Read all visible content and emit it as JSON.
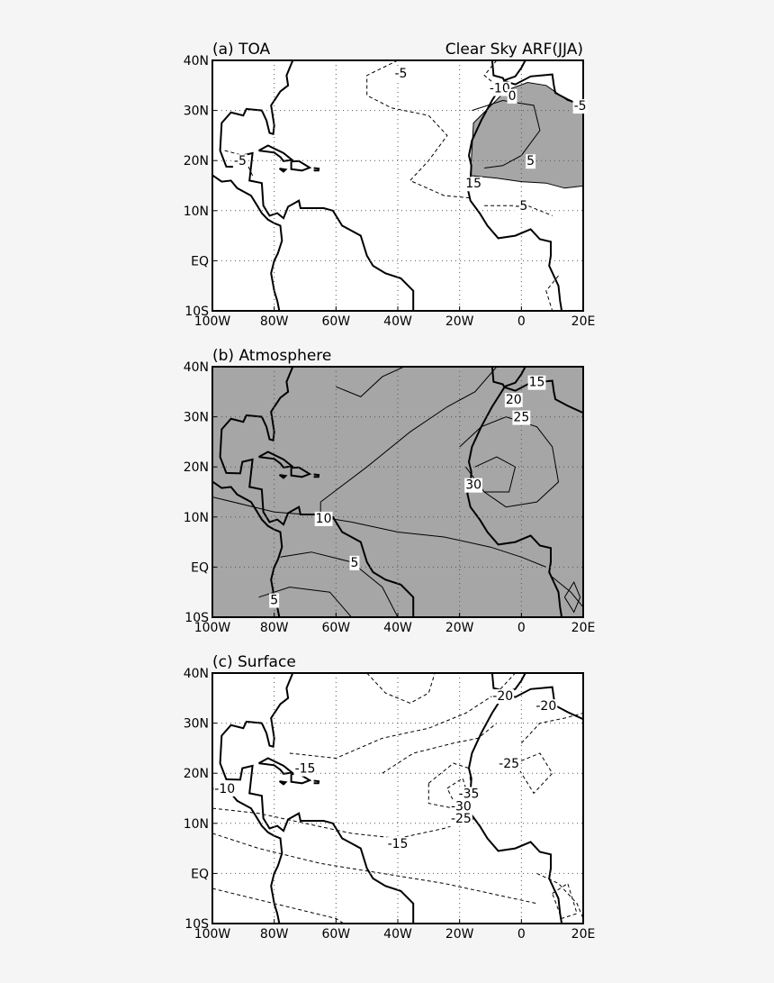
{
  "panels": [
    {
      "label": "(a) TOA",
      "subtitle": "Clear Sky ARF(JJA)",
      "xlim": [
        -100,
        20
      ],
      "ylim": [
        -10,
        40
      ],
      "xticks": [
        {
          "value": -100,
          "label": "100W"
        },
        {
          "value": -80,
          "label": "80W"
        },
        {
          "value": -60,
          "label": "60W"
        },
        {
          "value": -40,
          "label": "40W"
        },
        {
          "value": -20,
          "label": "20W"
        },
        0,
        {
          "value": 20,
          "label": "20E"
        }
      ],
      "yticks": [
        {
          "value": -10,
          "label": "10S"
        },
        {
          "value": 0,
          "label": "EQ"
        },
        {
          "value": 10,
          "label": "10N"
        },
        {
          "value": 20,
          "label": "20N"
        },
        {
          "value": 30,
          "label": "30N"
        },
        {
          "value": 40,
          "label": "40N"
        }
      ],
      "contour_labels": [
        -5,
        -10,
        0,
        -5,
        -5,
        5,
        15,
        -5
      ]
    },
    {
      "label": "(b) Atmosphere",
      "xlim": [
        -100,
        20
      ],
      "ylim": [
        -10,
        40
      ],
      "xticks": [
        {
          "value": -100,
          "label": "100W"
        },
        {
          "value": -80,
          "label": "80W"
        },
        {
          "value": -60,
          "label": "60W"
        },
        {
          "value": -40,
          "label": "40W"
        },
        {
          "value": -20,
          "label": "20W"
        },
        0,
        {
          "value": 20,
          "label": "20E"
        }
      ],
      "yticks": [
        {
          "value": -10,
          "label": "10S"
        },
        {
          "value": 0,
          "label": "EQ"
        },
        {
          "value": 10,
          "label": "10N"
        },
        {
          "value": 20,
          "label": "20N"
        },
        {
          "value": 30,
          "label": "30N"
        },
        {
          "value": 40,
          "label": "40N"
        }
      ],
      "contour_labels": [
        15,
        20,
        25,
        30,
        10,
        5,
        5
      ]
    },
    {
      "label": "(c) Surface",
      "xlim": [
        -100,
        20
      ],
      "ylim": [
        -10,
        40
      ],
      "xticks": [
        {
          "value": -100,
          "label": "100W"
        },
        {
          "value": -80,
          "label": "80W"
        },
        {
          "value": -60,
          "label": "60W"
        },
        {
          "value": -40,
          "label": "40W"
        },
        {
          "value": -20,
          "label": "20W"
        },
        0,
        {
          "value": 20,
          "label": "20E"
        }
      ],
      "yticks": [
        {
          "value": -10,
          "label": "10S"
        },
        {
          "value": 0,
          "label": "EQ"
        },
        {
          "value": 10,
          "label": "10N"
        },
        {
          "value": 20,
          "label": "20N"
        },
        {
          "value": 30,
          "label": "30N"
        },
        {
          "value": 40,
          "label": "40N"
        }
      ],
      "contour_labels": [
        -20,
        -20,
        -15,
        -25,
        -35,
        -30,
        -25,
        -15,
        -10
      ]
    }
  ]
}
